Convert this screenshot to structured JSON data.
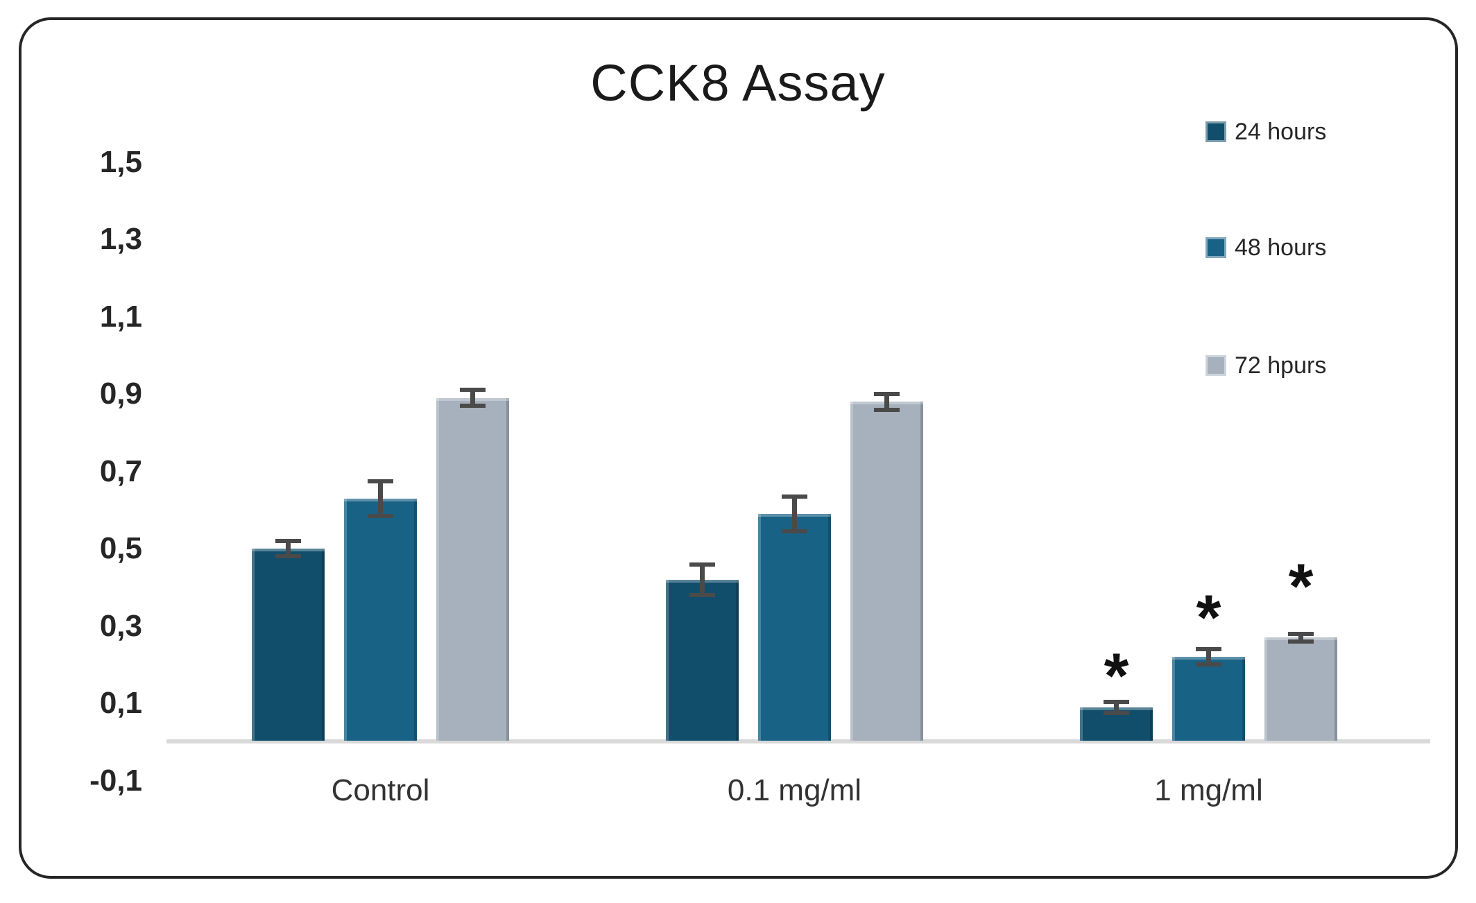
{
  "chart_data": {
    "type": "bar",
    "title": "CCK8 Assay",
    "categories": [
      "Control",
      "0.1 mg/ml",
      "1 mg/ml"
    ],
    "series": [
      {
        "name": "24 hours",
        "color": "#114e6b",
        "values": [
          0.5,
          0.42,
          0.09
        ],
        "errors": [
          0.025,
          0.045,
          0.02
        ]
      },
      {
        "name": "48 hours",
        "color": "#186286",
        "values": [
          0.63,
          0.59,
          0.22
        ],
        "errors": [
          0.05,
          0.05,
          0.025
        ]
      },
      {
        "name": "72 hpurs",
        "color": "#a6b1bd",
        "values": [
          0.89,
          0.88,
          0.27
        ],
        "errors": [
          0.026,
          0.026,
          0.015
        ]
      }
    ],
    "y_ticks": {
      "labels": [
        "1,5",
        "1,3",
        "1,1",
        "0,9",
        "0,7",
        "0,5",
        "0,3",
        "0,1",
        "-0,1"
      ],
      "values": [
        1.5,
        1.3,
        1.1,
        0.9,
        0.7,
        0.5,
        0.3,
        0.1,
        -0.1
      ]
    },
    "ylim": [
      -0.1,
      1.5
    ],
    "baseline_value": 0,
    "decimal_separator": ",",
    "grid": false,
    "legend_position": "right-top",
    "annotations": [
      {
        "category": "1 mg/ml",
        "series": "24 hours",
        "symbol": "*",
        "y": 0.2
      },
      {
        "category": "1 mg/ml",
        "series": "48 hours",
        "symbol": "*",
        "y": 0.35
      },
      {
        "category": "1 mg/ml",
        "series": "72 hpurs",
        "symbol": "*",
        "y": 0.43
      }
    ],
    "colors": {
      "error_bar": "#4a4a4a",
      "axis_line": "#d9d9d9",
      "frame_border": "#262626",
      "title_text": "#1a1a1a",
      "axis_text": "#262626"
    }
  }
}
